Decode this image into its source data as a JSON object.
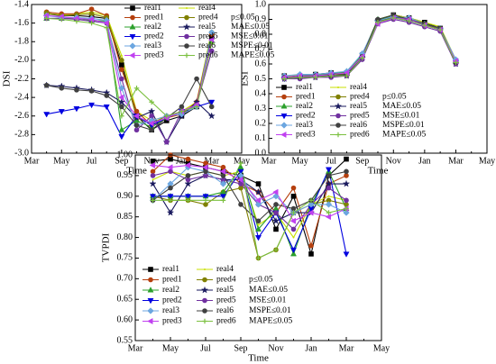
{
  "chart_data": [
    {
      "type": "line",
      "ylabel": "DSI",
      "xlabel": "Time",
      "legend": "upper right",
      "categories": [
        "Mar",
        null,
        "May",
        null,
        "Jul",
        null,
        "Sep",
        null,
        "Nov",
        null,
        "Jan",
        null,
        "Mar",
        null,
        "May"
      ],
      "ylim": [
        -3.0,
        -1.4
      ],
      "yticks": [
        {
          "value": -3,
          "label": "-3.0"
        },
        -2.8,
        -2.6,
        -2.4,
        -2.2,
        {
          "value": -2,
          "label": "-2.0"
        },
        -1.8,
        -1.6,
        -1.4
      ],
      "annotations": [
        "p≤0.05",
        "MAE≤0.05",
        "MSE≤0.01",
        "MSPE≤0.01",
        "MAPE≤0.05"
      ],
      "series": [
        {
          "name": "real1",
          "color": "#000000",
          "marker": "square",
          "values": [
            null,
            -1.5,
            -1.52,
            -1.52,
            -1.53,
            -1.55,
            -2.05,
            -2.6,
            -2.75,
            -2.65,
            -2.6,
            -2.5,
            -1.75,
            null,
            null
          ]
        },
        {
          "name": "real4",
          "color": "#c8e000",
          "marker": "none",
          "values": [
            null,
            -1.5,
            -1.51,
            -1.5,
            -1.48,
            -1.52,
            -1.95,
            -2.55,
            -2.65,
            -2.6,
            -2.55,
            -2.45,
            -1.68,
            null,
            null
          ]
        },
        {
          "name": "pred1",
          "color": "#b5400e",
          "marker": "circle",
          "values": [
            null,
            -1.48,
            -1.5,
            -1.5,
            -1.45,
            -1.52,
            -2.1,
            -2.55,
            -2.7,
            -2.62,
            -2.58,
            -2.45,
            -1.72,
            null,
            null
          ]
        },
        {
          "name": "pred4",
          "color": "#808000",
          "marker": "circle",
          "values": [
            null,
            -1.49,
            -1.52,
            -1.51,
            -1.5,
            -1.54,
            -2.0,
            -2.62,
            -2.68,
            -2.6,
            -2.56,
            -2.48,
            -1.7,
            null,
            null
          ]
        },
        {
          "name": "real2",
          "color": "#2ca02c",
          "marker": "triangle",
          "values": [
            null,
            -1.55,
            -1.55,
            -1.55,
            -1.57,
            -1.58,
            -2.75,
            -2.65,
            -2.72,
            -2.62,
            -2.55,
            -2.48,
            -1.8,
            null,
            null
          ]
        },
        {
          "name": "real5",
          "color": "#1a1a5e",
          "marker": "star",
          "values": [
            null,
            -2.27,
            -2.28,
            -2.3,
            -2.32,
            -2.35,
            -2.45,
            -2.62,
            -2.55,
            -2.88,
            -2.6,
            -2.45,
            -2.6,
            null,
            null
          ]
        },
        {
          "name": "pred2",
          "color": "#0000e0",
          "marker": "triangle-down",
          "values": [
            null,
            -2.58,
            -2.55,
            -2.52,
            -2.48,
            -2.5,
            -2.82,
            -2.6,
            -2.7,
            -2.62,
            -2.55,
            -2.5,
            -2.45,
            null,
            null
          ]
        },
        {
          "name": "pred5",
          "color": "#7030a0",
          "marker": "circle",
          "values": [
            null,
            -1.55,
            -1.55,
            -1.56,
            -1.58,
            -1.6,
            -2.2,
            -2.75,
            -2.6,
            -2.88,
            -2.55,
            -2.48,
            -1.9,
            null,
            null
          ]
        },
        {
          "name": "real3",
          "color": "#6ca6e0",
          "marker": "diamond",
          "values": [
            null,
            -1.52,
            -1.54,
            -1.54,
            -1.55,
            -1.57,
            -2.3,
            -2.7,
            -2.65,
            -2.6,
            -2.58,
            -2.5,
            -1.7,
            null,
            null
          ]
        },
        {
          "name": "real6",
          "color": "#404040",
          "marker": "circle",
          "values": [
            null,
            -2.27,
            -2.3,
            -2.32,
            -2.33,
            -2.38,
            -2.5,
            -2.7,
            -2.75,
            -2.62,
            -2.5,
            -2.2,
            -2.5,
            null,
            null
          ]
        },
        {
          "name": "pred3",
          "color": "#c040f0",
          "marker": "triangle-left",
          "values": [
            null,
            -1.52,
            -1.53,
            -1.55,
            -1.56,
            -1.6,
            -2.4,
            -2.6,
            -2.68,
            -2.62,
            -2.55,
            -2.48,
            -1.78,
            null,
            null
          ]
        },
        {
          "name": "pred6",
          "color": "#7cc040",
          "marker": "plus",
          "values": [
            null,
            -1.55,
            -1.56,
            -1.58,
            -1.6,
            -1.65,
            -2.6,
            -2.3,
            -2.45,
            -2.6,
            -2.55,
            -2.5,
            -1.82,
            null,
            null
          ]
        }
      ]
    },
    {
      "type": "line",
      "ylabel": "ESI",
      "xlabel": "Time",
      "legend": "lower left",
      "categories": [
        "Mar",
        null,
        "May",
        null,
        "Jul",
        null,
        "Sep",
        null,
        "Nov",
        null,
        "Jan",
        null,
        "Mar",
        null,
        "May"
      ],
      "ylim": [
        0,
        1
      ],
      "yticks": [
        {
          "value": 0,
          "label": "0.0"
        },
        0.1,
        0.2,
        0.3,
        0.4,
        0.5,
        0.6,
        0.7,
        0.8,
        0.9,
        {
          "value": 1,
          "label": "1.0"
        }
      ],
      "annotations": [
        "p≤0.05",
        "MAE≤0.05",
        "MSE≤0.01",
        "MSPE≤0.01",
        "MAPE≤0.05"
      ],
      "series": [
        {
          "name": "real1",
          "color": "#000000",
          "marker": "square",
          "values": [
            null,
            0.52,
            0.52,
            0.53,
            0.54,
            0.54,
            0.66,
            0.89,
            0.93,
            0.91,
            0.88,
            0.84,
            0.62,
            null,
            null
          ]
        },
        {
          "name": "real4",
          "color": "#c8e000",
          "marker": "none",
          "values": [
            null,
            0.52,
            0.52,
            0.53,
            0.53,
            0.54,
            0.66,
            0.9,
            0.93,
            0.91,
            0.88,
            0.85,
            0.63,
            null,
            null
          ]
        },
        {
          "name": "pred1",
          "color": "#b5400e",
          "marker": "circle",
          "values": [
            null,
            0.51,
            0.52,
            0.52,
            0.53,
            0.54,
            0.65,
            0.88,
            0.92,
            0.9,
            0.87,
            0.83,
            0.61,
            null,
            null
          ]
        },
        {
          "name": "pred4",
          "color": "#808000",
          "marker": "circle",
          "values": [
            null,
            0.51,
            0.51,
            0.52,
            0.53,
            0.53,
            0.65,
            0.88,
            0.92,
            0.9,
            0.87,
            0.84,
            0.62,
            null,
            null
          ]
        },
        {
          "name": "real2",
          "color": "#2ca02c",
          "marker": "triangle",
          "values": [
            null,
            0.51,
            0.52,
            0.53,
            0.53,
            0.55,
            0.66,
            0.9,
            0.92,
            0.9,
            0.87,
            0.84,
            0.62,
            null,
            null
          ]
        },
        {
          "name": "real5",
          "color": "#1a1a5e",
          "marker": "star",
          "values": [
            null,
            0.5,
            0.51,
            0.51,
            0.52,
            0.52,
            0.64,
            0.89,
            0.92,
            0.89,
            0.86,
            0.83,
            0.6,
            null,
            null
          ]
        },
        {
          "name": "pred2",
          "color": "#0000e0",
          "marker": "triangle-down",
          "values": [
            null,
            0.5,
            0.51,
            0.52,
            0.52,
            0.53,
            0.64,
            0.88,
            0.91,
            0.89,
            0.86,
            0.83,
            0.61,
            null,
            null
          ]
        },
        {
          "name": "pred5",
          "color": "#7030a0",
          "marker": "circle",
          "values": [
            null,
            0.5,
            0.5,
            0.51,
            0.51,
            0.52,
            0.63,
            0.87,
            0.9,
            0.88,
            0.85,
            0.82,
            0.6,
            null,
            null
          ]
        },
        {
          "name": "real3",
          "color": "#6ca6e0",
          "marker": "diamond",
          "values": [
            null,
            0.52,
            0.53,
            0.53,
            0.54,
            0.55,
            0.67,
            0.89,
            0.92,
            0.91,
            0.87,
            0.84,
            0.63,
            null,
            null
          ]
        },
        {
          "name": "real6",
          "color": "#404040",
          "marker": "circle",
          "values": [
            null,
            0.51,
            0.51,
            0.52,
            0.52,
            0.53,
            0.65,
            0.9,
            0.93,
            0.9,
            0.87,
            0.84,
            0.61,
            null,
            null
          ]
        },
        {
          "name": "pred3",
          "color": "#c040f0",
          "marker": "triangle-left",
          "values": [
            null,
            0.51,
            0.52,
            0.52,
            0.53,
            0.54,
            0.65,
            0.87,
            0.91,
            0.9,
            0.86,
            0.83,
            0.62,
            null,
            null
          ]
        },
        {
          "name": "pred6",
          "color": "#7cc040",
          "marker": "plus",
          "values": [
            null,
            0.5,
            0.51,
            0.51,
            0.52,
            0.52,
            0.64,
            0.88,
            0.91,
            0.89,
            0.86,
            0.83,
            0.61,
            null,
            null
          ]
        }
      ]
    },
    {
      "type": "line",
      "ylabel": "TVPDI",
      "xlabel": "Time",
      "legend": "lower left",
      "categories": [
        "Mar",
        null,
        "May",
        null,
        "Jul",
        null,
        "Sep",
        null,
        "Nov",
        null,
        "Jan",
        null,
        "Mar",
        null,
        "May"
      ],
      "ylim": [
        0.55,
        1.0
      ],
      "yticks": [
        0.55,
        {
          "value": 0.6,
          "label": "0.60"
        },
        0.65,
        {
          "value": 0.7,
          "label": "0.70"
        },
        0.75,
        {
          "value": 0.8,
          "label": "0.80"
        },
        0.85,
        {
          "value": 0.9,
          "label": "0.90"
        },
        0.95,
        {
          "value": 1,
          "label": "1.00"
        }
      ],
      "annotations": [
        "p≤0.05",
        "MAE≤0.05",
        "MSE≤0.01",
        "MSPE≤0.01",
        "MAPE≤0.05"
      ],
      "series": [
        {
          "name": "real1",
          "color": "#000000",
          "marker": "square",
          "values": [
            null,
            0.985,
            0.99,
            0.98,
            0.97,
            0.96,
            0.95,
            0.93,
            0.82,
            0.9,
            0.76,
            0.95,
            0.99,
            null,
            null
          ]
        },
        {
          "name": "real4",
          "color": "#c8e000",
          "marker": "none",
          "values": [
            null,
            0.94,
            0.96,
            0.95,
            0.96,
            0.95,
            0.96,
            0.83,
            0.86,
            0.8,
            0.88,
            0.9,
            0.89,
            null,
            null
          ]
        },
        {
          "name": "pred1",
          "color": "#b5400e",
          "marker": "circle",
          "values": [
            null,
            0.96,
            1.0,
            0.99,
            0.98,
            0.97,
            0.93,
            0.91,
            0.86,
            0.92,
            0.78,
            0.93,
            0.95,
            null,
            null
          ]
        },
        {
          "name": "pred4",
          "color": "#808000",
          "marker": "circle",
          "values": [
            null,
            0.9,
            0.89,
            0.89,
            0.88,
            0.91,
            0.92,
            0.75,
            0.77,
            0.86,
            0.88,
            0.89,
            0.88,
            null,
            null
          ]
        },
        {
          "name": "real2",
          "color": "#2ca02c",
          "marker": "triangle",
          "values": [
            null,
            0.9,
            0.9,
            0.9,
            0.9,
            0.91,
            0.97,
            0.82,
            0.87,
            0.76,
            0.88,
            0.96,
            0.87,
            null,
            null
          ]
        },
        {
          "name": "real5",
          "color": "#1a1a5e",
          "marker": "star",
          "values": [
            null,
            0.93,
            0.86,
            0.93,
            0.95,
            0.94,
            0.94,
            0.91,
            0.84,
            0.86,
            0.86,
            0.93,
            0.93,
            null,
            null
          ]
        },
        {
          "name": "pred2",
          "color": "#0000e0",
          "marker": "triangle-down",
          "values": [
            null,
            0.9,
            0.9,
            0.9,
            0.9,
            0.9,
            0.96,
            0.8,
            0.86,
            0.77,
            0.87,
            0.965,
            0.76,
            null,
            null
          ]
        },
        {
          "name": "pred5",
          "color": "#7030a0",
          "marker": "circle",
          "values": [
            null,
            0.95,
            0.96,
            0.94,
            0.95,
            0.94,
            0.93,
            0.88,
            0.86,
            0.82,
            0.88,
            0.92,
            0.89,
            null,
            null
          ]
        },
        {
          "name": "real3",
          "color": "#6ca6e0",
          "marker": "diamond",
          "values": [
            null,
            0.89,
            0.93,
            0.97,
            0.96,
            0.93,
            0.95,
            0.88,
            0.9,
            0.86,
            0.88,
            0.88,
            0.86,
            null,
            null
          ]
        },
        {
          "name": "real6",
          "color": "#404040",
          "marker": "circle",
          "values": [
            null,
            0.89,
            0.92,
            0.95,
            0.96,
            0.95,
            0.88,
            0.84,
            0.88,
            0.87,
            0.89,
            0.95,
            0.96,
            null,
            null
          ]
        },
        {
          "name": "pred3",
          "color": "#c040f0",
          "marker": "triangle-left",
          "values": [
            null,
            0.975,
            0.97,
            0.975,
            0.97,
            0.96,
            0.94,
            0.89,
            0.91,
            0.84,
            0.86,
            0.85,
            0.87,
            null,
            null
          ]
        },
        {
          "name": "pred6",
          "color": "#7cc040",
          "marker": "plus",
          "values": [
            null,
            0.89,
            0.89,
            0.89,
            0.89,
            0.89,
            0.98,
            0.75,
            0.77,
            0.86,
            0.89,
            0.86,
            0.87,
            null,
            null
          ]
        }
      ]
    }
  ]
}
